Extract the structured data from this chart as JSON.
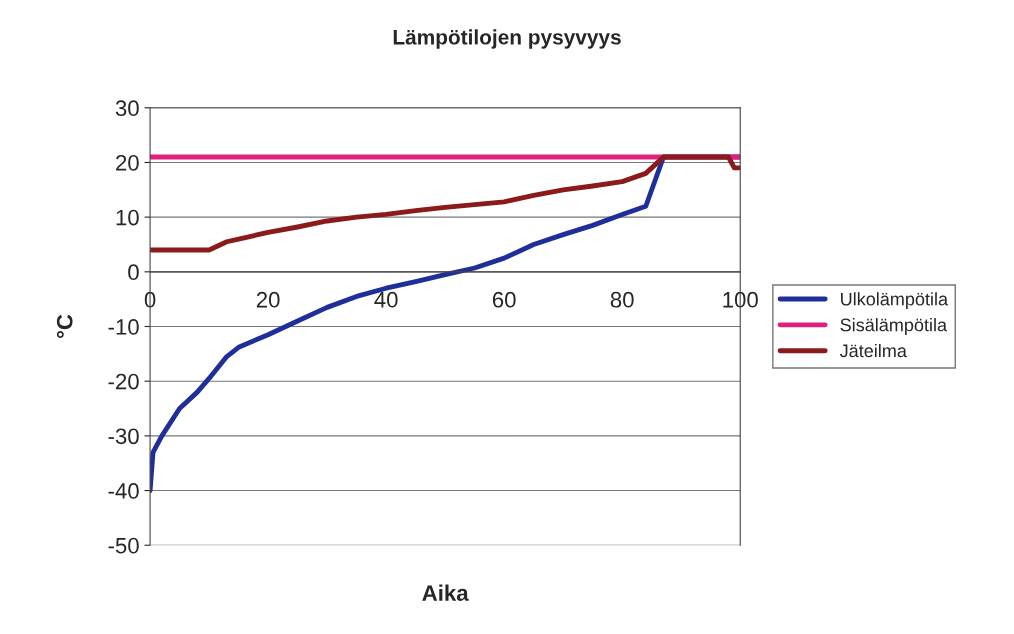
{
  "chart_data": {
    "type": "line",
    "title": "Lämpötilojen pysyvyys",
    "xlabel": "Aika",
    "ylabel": "°C",
    "xlim": [
      0,
      100
    ],
    "xticks": [
      0,
      20,
      40,
      60,
      80,
      100
    ],
    "ylim": [
      -50,
      30
    ],
    "yticks": [
      -50,
      -40,
      -30,
      -20,
      -10,
      0,
      10,
      20,
      30
    ],
    "grid": "y",
    "legend": "right",
    "marker": "none",
    "line_style": "solid",
    "series": [
      {
        "name": "Ulkolämpötila",
        "color": "#1f2f9a",
        "x": [
          0,
          0.5,
          2,
          5,
          8,
          10,
          13,
          15,
          20,
          25,
          30,
          35,
          40,
          45,
          50,
          55,
          60,
          65,
          70,
          75,
          80,
          84,
          87,
          100
        ],
        "values": [
          -40,
          -33,
          -30,
          -25,
          -22,
          -19.5,
          -15.5,
          -13.8,
          -11.5,
          -9,
          -6.5,
          -4.5,
          -3,
          -1.8,
          -0.5,
          0.7,
          2.5,
          5,
          6.8,
          8.5,
          10.5,
          12,
          21,
          21
        ]
      },
      {
        "name": "Sisälämpötila",
        "color": "#e0207f",
        "x": [
          0,
          100
        ],
        "values": [
          21,
          21
        ]
      },
      {
        "name": "Jäteilma",
        "color": "#8b1a1a",
        "x": [
          0,
          10,
          13,
          15,
          20,
          25,
          30,
          35,
          40,
          45,
          50,
          55,
          60,
          65,
          70,
          75,
          80,
          84,
          87,
          98,
          99,
          100
        ],
        "values": [
          4,
          4,
          5.5,
          6,
          7.2,
          8.2,
          9.3,
          10,
          10.5,
          11.2,
          11.8,
          12.3,
          12.8,
          14,
          15,
          15.7,
          16.5,
          18,
          21,
          21,
          19,
          19
        ]
      }
    ]
  }
}
